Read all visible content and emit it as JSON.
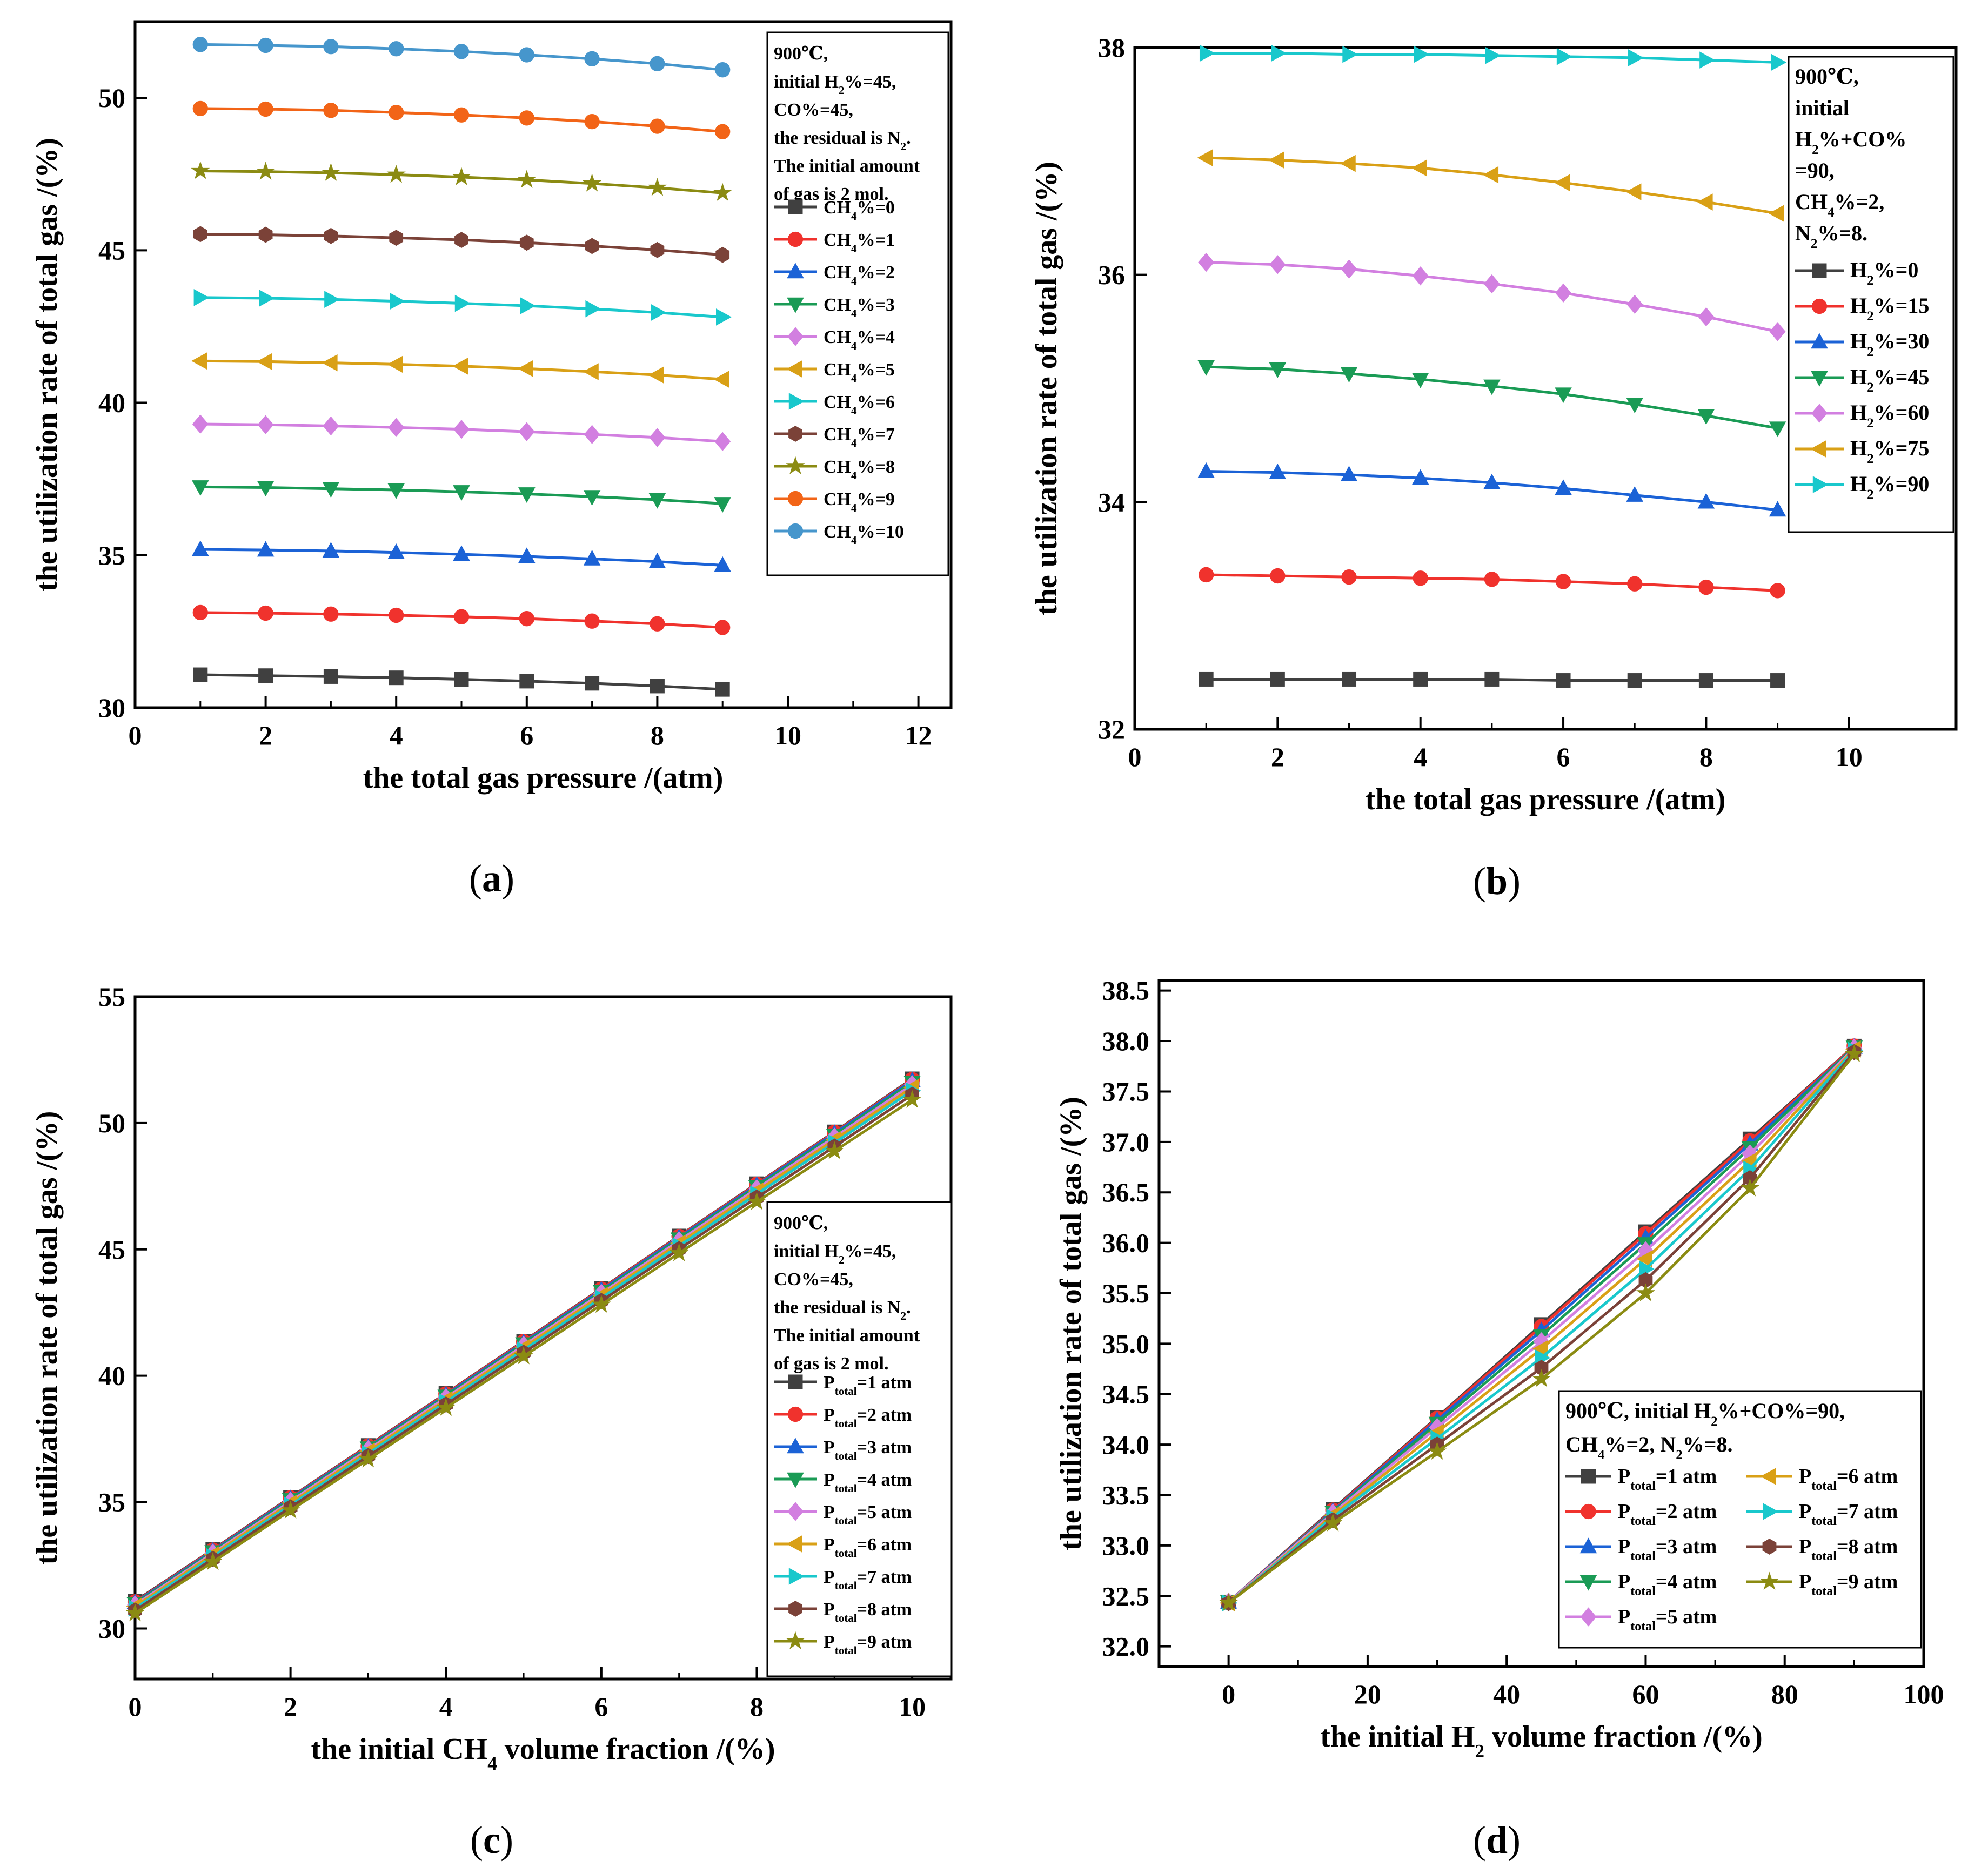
{
  "chart_data": [
    {
      "id": "a",
      "type": "line",
      "panel_label": "(a)",
      "xlabel": "the total gas pressure /(atm)",
      "ylabel": "the utilization rate of total gas /(%)",
      "xlim": [
        0,
        12.5
      ],
      "ylim": [
        30,
        52.5
      ],
      "xticks": [
        0,
        2,
        4,
        6,
        8,
        10,
        12
      ],
      "yticks": [
        30,
        35,
        40,
        45,
        50
      ],
      "legend_title": [
        "900℃,",
        "initial H₂%=45,",
        "CO%=45,",
        "the residual is N₂.",
        "The initial amount",
        " of gas is 2 mol."
      ],
      "x": [
        1,
        2,
        3,
        4,
        5,
        6,
        7,
        8,
        9
      ],
      "series": [
        {
          "name": "CH₄%=0",
          "color": "#404040",
          "marker": "square",
          "values": [
            31.08,
            31.05,
            31.02,
            30.98,
            30.93,
            30.87,
            30.8,
            30.71,
            30.6
          ]
        },
        {
          "name": "CH₄%=1",
          "color": "#f0322d",
          "marker": "circle",
          "values": [
            33.12,
            33.1,
            33.07,
            33.03,
            32.98,
            32.92,
            32.84,
            32.75,
            32.63
          ]
        },
        {
          "name": "CH₄%=2",
          "color": "#1b62d6",
          "marker": "triangle-up",
          "values": [
            35.19,
            35.17,
            35.14,
            35.09,
            35.03,
            34.96,
            34.88,
            34.79,
            34.67
          ]
        },
        {
          "name": "CH₄%=3",
          "color": "#1a9b55",
          "marker": "triangle-down",
          "values": [
            37.24,
            37.22,
            37.18,
            37.14,
            37.08,
            37.01,
            36.92,
            36.82,
            36.69
          ]
        },
        {
          "name": "CH₄%=4",
          "color": "#d27fe0",
          "marker": "diamond",
          "values": [
            39.3,
            39.28,
            39.24,
            39.19,
            39.13,
            39.05,
            38.96,
            38.86,
            38.73
          ]
        },
        {
          "name": "CH₄%=5",
          "color": "#d9a016",
          "marker": "triangle-left",
          "values": [
            41.37,
            41.35,
            41.31,
            41.26,
            41.2,
            41.12,
            41.02,
            40.91,
            40.77
          ]
        },
        {
          "name": "CH₄%=6",
          "color": "#19c8cc",
          "marker": "triangle-right",
          "values": [
            43.45,
            43.43,
            43.39,
            43.33,
            43.26,
            43.18,
            43.08,
            42.96,
            42.81
          ]
        },
        {
          "name": "CH₄%=7",
          "color": "#7b4238",
          "marker": "hexagon",
          "values": [
            45.53,
            45.51,
            45.47,
            45.41,
            45.34,
            45.25,
            45.14,
            45.01,
            44.85
          ]
        },
        {
          "name": "CH₄%=8",
          "color": "#8b8b12",
          "marker": "star",
          "values": [
            47.6,
            47.58,
            47.54,
            47.48,
            47.4,
            47.31,
            47.19,
            47.05,
            46.88
          ]
        },
        {
          "name": "CH₄%=9",
          "color": "#f26417",
          "marker": "circle",
          "values": [
            49.65,
            49.63,
            49.59,
            49.52,
            49.44,
            49.34,
            49.22,
            49.07,
            48.89
          ]
        },
        {
          "name": "CH₄%=10",
          "color": "#4696cc",
          "marker": "circle",
          "values": [
            51.75,
            51.72,
            51.68,
            51.61,
            51.52,
            51.41,
            51.28,
            51.12,
            50.92
          ]
        }
      ]
    },
    {
      "id": "b",
      "type": "line",
      "panel_label": "(b)",
      "xlabel": "the total gas pressure /(atm)",
      "ylabel": "the utilization rate of total gas /(%)",
      "xlim": [
        0,
        11.5
      ],
      "ylim": [
        32,
        38
      ],
      "xticks": [
        0,
        2,
        4,
        6,
        8,
        10
      ],
      "yticks": [
        32,
        34,
        36,
        38
      ],
      "legend_title": [
        "900℃,",
        "initial",
        "H₂%+CO%",
        "=90,",
        "CH₄%=2,",
        "N₂%=8."
      ],
      "x": [
        1,
        2,
        3,
        4,
        5,
        6,
        7,
        8,
        9
      ],
      "series": [
        {
          "name": "H₂%=0",
          "color": "#404040",
          "marker": "square",
          "values": [
            32.44,
            32.44,
            32.44,
            32.44,
            32.44,
            32.43,
            32.43,
            32.43,
            32.43
          ]
        },
        {
          "name": "H₂%=15",
          "color": "#f0322d",
          "marker": "circle",
          "values": [
            33.36,
            33.35,
            33.34,
            33.33,
            33.32,
            33.3,
            33.28,
            33.25,
            33.22
          ]
        },
        {
          "name": "H₂%=30",
          "color": "#1b62d6",
          "marker": "triangle-up",
          "values": [
            34.27,
            34.26,
            34.24,
            34.21,
            34.17,
            34.12,
            34.06,
            34.0,
            33.93
          ]
        },
        {
          "name": "H₂%=45",
          "color": "#1a9b55",
          "marker": "triangle-down",
          "values": [
            35.19,
            35.17,
            35.13,
            35.08,
            35.02,
            34.95,
            34.86,
            34.76,
            34.65
          ]
        },
        {
          "name": "H₂%=60",
          "color": "#d27fe0",
          "marker": "diamond",
          "values": [
            36.11,
            36.09,
            36.05,
            35.99,
            35.92,
            35.84,
            35.74,
            35.63,
            35.5
          ]
        },
        {
          "name": "H₂%=75",
          "color": "#d9a016",
          "marker": "triangle-left",
          "values": [
            37.03,
            37.01,
            36.98,
            36.94,
            36.88,
            36.81,
            36.73,
            36.64,
            36.54
          ]
        },
        {
          "name": "H₂%=90",
          "color": "#19c8cc",
          "marker": "triangle-right",
          "values": [
            37.95,
            37.95,
            37.94,
            37.94,
            37.93,
            37.92,
            37.91,
            37.89,
            37.87
          ]
        }
      ]
    },
    {
      "id": "c",
      "type": "line",
      "panel_label": "(c)",
      "xlabel": "the initial CH₄ volume fraction /(%)",
      "ylabel": "the utilization rate of total gas /(%)",
      "xlim": [
        0,
        10.5
      ],
      "ylim": [
        28,
        55
      ],
      "xticks": [
        0,
        2,
        4,
        6,
        8,
        10
      ],
      "yticks": [
        30,
        35,
        40,
        45,
        50,
        55
      ],
      "legend_title": [
        "900℃,",
        "initial H₂%=45,",
        "CO%=45,",
        "the residual is N₂.",
        "The initial amount",
        " of gas is 2 mol."
      ],
      "x": [
        0,
        1,
        2,
        3,
        4,
        5,
        6,
        7,
        8,
        9,
        10
      ],
      "series": [
        {
          "name": "Ptotal=1 atm",
          "sub": "total",
          "color": "#404040",
          "marker": "square",
          "values": [
            31.08,
            33.12,
            35.19,
            37.24,
            39.3,
            41.37,
            43.45,
            45.53,
            47.6,
            49.65,
            51.75
          ]
        },
        {
          "name": "Ptotal=2 atm",
          "sub": "total",
          "color": "#f0322d",
          "marker": "circle",
          "values": [
            31.05,
            33.1,
            35.17,
            37.22,
            39.28,
            41.35,
            43.43,
            45.51,
            47.58,
            49.63,
            51.72
          ]
        },
        {
          "name": "Ptotal=3 atm",
          "sub": "total",
          "color": "#1b62d6",
          "marker": "triangle-up",
          "values": [
            31.02,
            33.07,
            35.14,
            37.18,
            39.24,
            41.31,
            43.39,
            45.47,
            47.54,
            49.59,
            51.68
          ]
        },
        {
          "name": "Ptotal=4 atm",
          "sub": "total",
          "color": "#1a9b55",
          "marker": "triangle-down",
          "values": [
            30.98,
            33.03,
            35.09,
            37.14,
            39.19,
            41.26,
            43.33,
            45.41,
            47.48,
            49.52,
            51.61
          ]
        },
        {
          "name": "Ptotal=5 atm",
          "sub": "total",
          "color": "#d27fe0",
          "marker": "diamond",
          "values": [
            30.93,
            32.98,
            35.03,
            37.08,
            39.13,
            41.2,
            43.26,
            45.34,
            47.4,
            49.44,
            51.52
          ]
        },
        {
          "name": "Ptotal=6 atm",
          "sub": "total",
          "color": "#d9a016",
          "marker": "triangle-left",
          "values": [
            30.87,
            32.92,
            34.96,
            37.01,
            39.05,
            41.12,
            43.18,
            45.25,
            47.31,
            49.34,
            51.41
          ]
        },
        {
          "name": "Ptotal=7 atm",
          "sub": "total",
          "color": "#19c8cc",
          "marker": "triangle-right",
          "values": [
            30.8,
            32.84,
            34.88,
            36.92,
            38.96,
            41.02,
            43.08,
            45.14,
            47.19,
            49.22,
            51.28
          ]
        },
        {
          "name": "Ptotal=8 atm",
          "sub": "total",
          "color": "#7b4238",
          "marker": "hexagon",
          "values": [
            30.71,
            32.75,
            34.79,
            36.82,
            38.86,
            40.91,
            42.96,
            45.01,
            47.05,
            49.07,
            51.12
          ]
        },
        {
          "name": "Ptotal=9 atm",
          "sub": "total",
          "color": "#8b8b12",
          "marker": "star",
          "values": [
            30.6,
            32.63,
            34.67,
            36.69,
            38.73,
            40.77,
            42.81,
            44.85,
            46.88,
            48.89,
            50.92
          ]
        }
      ]
    },
    {
      "id": "d",
      "type": "line",
      "panel_label": "(d)",
      "xlabel": "the initial H₂ volume fraction /(%)",
      "ylabel": "the utilization rate of total gas /(%)",
      "xlim": [
        -10,
        100
      ],
      "ylim": [
        31.8,
        38.6
      ],
      "xticks": [
        0,
        20,
        40,
        60,
        80,
        100
      ],
      "yticks": [
        32.0,
        32.5,
        33.0,
        33.5,
        34.0,
        34.5,
        35.0,
        35.5,
        36.0,
        36.5,
        37.0,
        37.5,
        38.0,
        38.5
      ],
      "legend_title": [
        "900℃, initial H₂%+CO%=90,",
        "CH₄%=2, N₂%=8."
      ],
      "x": [
        0,
        15,
        30,
        45,
        60,
        75,
        90
      ],
      "series": [
        {
          "name": "Ptotal=1 atm",
          "sub": "total",
          "color": "#404040",
          "marker": "square",
          "values": [
            32.44,
            33.36,
            34.27,
            35.19,
            36.11,
            37.03,
            37.95
          ]
        },
        {
          "name": "Ptotal=2 atm",
          "sub": "total",
          "color": "#f0322d",
          "marker": "circle",
          "values": [
            32.44,
            33.35,
            34.26,
            35.17,
            36.09,
            37.01,
            37.95
          ]
        },
        {
          "name": "Ptotal=3 atm",
          "sub": "total",
          "color": "#1b62d6",
          "marker": "triangle-up",
          "values": [
            32.44,
            33.34,
            34.24,
            35.13,
            36.05,
            36.98,
            37.94
          ]
        },
        {
          "name": "Ptotal=4 atm",
          "sub": "total",
          "color": "#1a9b55",
          "marker": "triangle-down",
          "values": [
            32.44,
            33.33,
            34.21,
            35.08,
            35.99,
            36.94,
            37.94
          ]
        },
        {
          "name": "Ptotal=5 atm",
          "sub": "total",
          "color": "#d27fe0",
          "marker": "diamond",
          "values": [
            32.44,
            33.32,
            34.17,
            35.02,
            35.92,
            36.88,
            37.93
          ]
        },
        {
          "name": "Ptotal=6 atm",
          "sub": "total",
          "color": "#d9a016",
          "marker": "triangle-left",
          "values": [
            32.43,
            33.3,
            34.12,
            34.95,
            35.84,
            36.81,
            37.92
          ]
        },
        {
          "name": "Ptotal=7 atm",
          "sub": "total",
          "color": "#19c8cc",
          "marker": "triangle-right",
          "values": [
            32.43,
            33.28,
            34.06,
            34.86,
            35.74,
            36.73,
            37.91
          ]
        },
        {
          "name": "Ptotal=8 atm",
          "sub": "total",
          "color": "#7b4238",
          "marker": "hexagon",
          "values": [
            32.43,
            33.25,
            34.0,
            34.76,
            35.63,
            36.64,
            37.89
          ]
        },
        {
          "name": "Ptotal=9 atm",
          "sub": "total",
          "color": "#8b8b12",
          "marker": "star",
          "values": [
            32.43,
            33.22,
            33.93,
            34.65,
            35.5,
            36.54,
            37.87
          ]
        }
      ]
    }
  ]
}
